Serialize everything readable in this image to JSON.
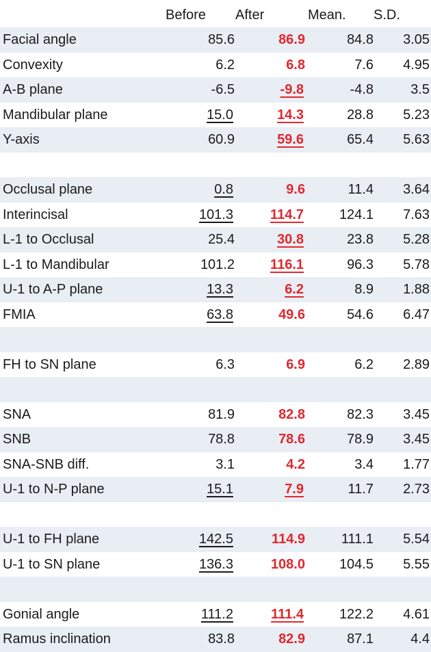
{
  "headers": {
    "before": "Before",
    "after": "After",
    "mean": "Mean.",
    "sd": "S.D."
  },
  "rows": [
    {
      "label": "Facial angle",
      "before": "85.6",
      "after": "86.9",
      "mean": "84.8",
      "sd": "3.05",
      "before_ul": false,
      "after_ul": false
    },
    {
      "label": "Convexity",
      "before": "6.2",
      "after": "6.8",
      "mean": "7.6",
      "sd": "4.95",
      "before_ul": false,
      "after_ul": false
    },
    {
      "label": "A-B plane",
      "before": "-6.5",
      "after": "-9.8",
      "mean": "-4.8",
      "sd": "3.5",
      "before_ul": false,
      "after_ul": true
    },
    {
      "label": "Mandibular plane",
      "before": "15.0",
      "after": "14.3",
      "mean": "28.8",
      "sd": "5.23",
      "before_ul": true,
      "after_ul": true
    },
    {
      "label": "Y-axis",
      "before": "60.9",
      "after": "59.6",
      "mean": "65.4",
      "sd": "5.63",
      "before_ul": false,
      "after_ul": true
    },
    {
      "label": "",
      "before": "",
      "after": "",
      "mean": "",
      "sd": "",
      "before_ul": false,
      "after_ul": false
    },
    {
      "label": "Occlusal plane",
      "before": "0.8",
      "after": "9.6",
      "mean": "11.4",
      "sd": "3.64",
      "before_ul": true,
      "after_ul": false
    },
    {
      "label": "Interincisal",
      "before": "101.3",
      "after": "114.7",
      "mean": "124.1",
      "sd": "7.63",
      "before_ul": true,
      "after_ul": true
    },
    {
      "label": "L-1 to Occlusal",
      "before": "25.4",
      "after": "30.8",
      "mean": "23.8",
      "sd": "5.28",
      "before_ul": false,
      "after_ul": true
    },
    {
      "label": "L-1 to Mandibular",
      "before": "101.2",
      "after": "116.1",
      "mean": "96.3",
      "sd": "5.78",
      "before_ul": false,
      "after_ul": true
    },
    {
      "label": "U-1 to A-P plane",
      "before": "13.3",
      "after": "6.2",
      "mean": "8.9",
      "sd": "1.88",
      "before_ul": true,
      "after_ul": true
    },
    {
      "label": "FMIA",
      "before": "63.8",
      "after": "49.6",
      "mean": "54.6",
      "sd": "6.47",
      "before_ul": true,
      "after_ul": false
    },
    {
      "label": "",
      "before": "",
      "after": "",
      "mean": "",
      "sd": "",
      "before_ul": false,
      "after_ul": false
    },
    {
      "label": "FH to SN plane",
      "before": "6.3",
      "after": "6.9",
      "mean": "6.2",
      "sd": "2.89",
      "before_ul": false,
      "after_ul": false
    },
    {
      "label": "",
      "before": "",
      "after": "",
      "mean": "",
      "sd": "",
      "before_ul": false,
      "after_ul": false
    },
    {
      "label": "SNA",
      "before": "81.9",
      "after": "82.8",
      "mean": "82.3",
      "sd": "3.45",
      "before_ul": false,
      "after_ul": false
    },
    {
      "label": "SNB",
      "before": "78.8",
      "after": "78.6",
      "mean": "78.9",
      "sd": "3.45",
      "before_ul": false,
      "after_ul": false
    },
    {
      "label": "SNA-SNB diff.",
      "before": "3.1",
      "after": "4.2",
      "mean": "3.4",
      "sd": "1.77",
      "before_ul": false,
      "after_ul": false
    },
    {
      "label": "U-1 to N-P plane",
      "before": "15.1",
      "after": "7.9",
      "mean": "11.7",
      "sd": "2.73",
      "before_ul": true,
      "after_ul": true
    },
    {
      "label": "",
      "before": "",
      "after": "",
      "mean": "",
      "sd": "",
      "before_ul": false,
      "after_ul": false
    },
    {
      "label": "U-1 to FH plane",
      "before": "142.5",
      "after": "114.9",
      "mean": "111.1",
      "sd": "5.54",
      "before_ul": true,
      "after_ul": false
    },
    {
      "label": "U-1 to SN plane",
      "before": "136.3",
      "after": "108.0",
      "mean": "104.5",
      "sd": "5.55",
      "before_ul": true,
      "after_ul": false
    },
    {
      "label": "",
      "before": "",
      "after": "",
      "mean": "",
      "sd": "",
      "before_ul": false,
      "after_ul": false
    },
    {
      "label": "Gonial angle",
      "before": "111.2",
      "after": "111.4",
      "mean": "122.2",
      "sd": "4.61",
      "before_ul": true,
      "after_ul": true
    },
    {
      "label": "Ramus inclination",
      "before": "83.8",
      "after": "82.9",
      "mean": "87.1",
      "sd": "4.4",
      "before_ul": false,
      "after_ul": false
    }
  ]
}
